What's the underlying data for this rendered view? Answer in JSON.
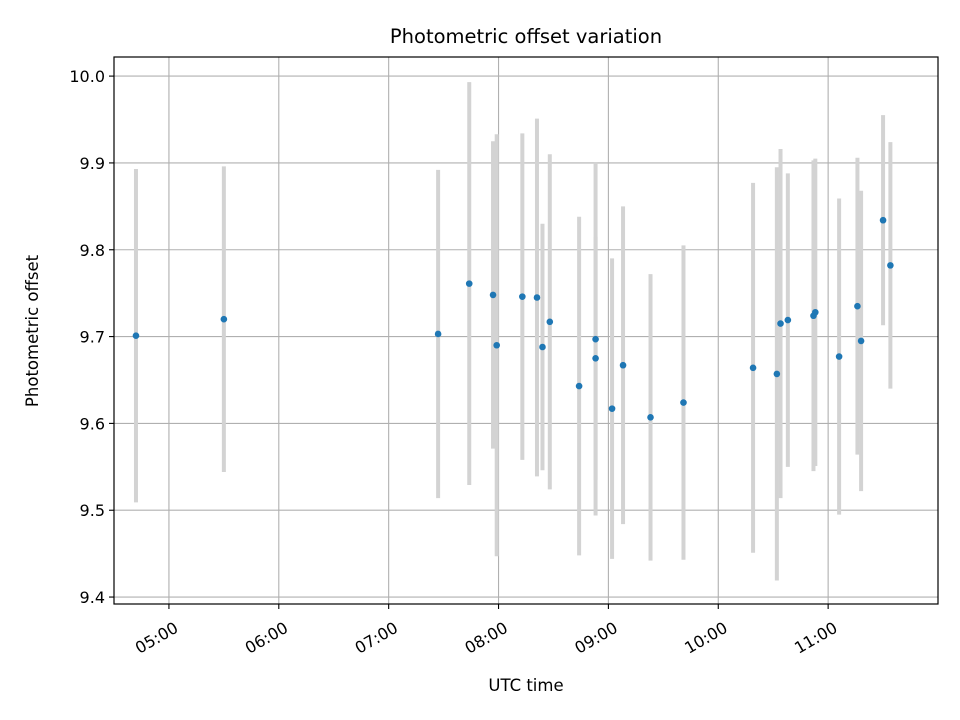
{
  "chart_data": {
    "type": "scatter",
    "title": "Photometric offset variation",
    "xlabel": "UTC time",
    "ylabel": "Photometric offset",
    "x_axis_kind": "time",
    "xlim": [
      "04:30",
      "12:00"
    ],
    "ylim": [
      9.392,
      10.022
    ],
    "x_ticks": [
      "05:00",
      "06:00",
      "07:00",
      "08:00",
      "09:00",
      "10:00",
      "11:00"
    ],
    "y_ticks": [
      "9.4",
      "9.5",
      "9.6",
      "9.7",
      "9.8",
      "9.9",
      "10.0"
    ],
    "grid": true,
    "marker_color": "#1f77b4",
    "errorbar_color": "#d3d3d3",
    "points": [
      {
        "t": "04:42",
        "y": 9.701,
        "err": 0.192
      },
      {
        "t": "05:30",
        "y": 9.72,
        "err": 0.176
      },
      {
        "t": "07:27",
        "y": 9.703,
        "err": 0.189
      },
      {
        "t": "07:44",
        "y": 9.761,
        "err": 0.232
      },
      {
        "t": "07:57",
        "y": 9.748,
        "err": 0.177
      },
      {
        "t": "07:59",
        "y": 9.69,
        "err": 0.243
      },
      {
        "t": "08:13",
        "y": 9.746,
        "err": 0.188
      },
      {
        "t": "08:21",
        "y": 9.745,
        "err": 0.206
      },
      {
        "t": "08:24",
        "y": 9.688,
        "err": 0.142
      },
      {
        "t": "08:28",
        "y": 9.717,
        "err": 0.193
      },
      {
        "t": "08:44",
        "y": 9.643,
        "err": 0.195
      },
      {
        "t": "08:53",
        "y": 9.697,
        "err": 0.203
      },
      {
        "t": "08:53",
        "y": 9.675,
        "err": 0.14
      },
      {
        "t": "09:02",
        "y": 9.617,
        "err": 0.173
      },
      {
        "t": "09:08",
        "y": 9.667,
        "err": 0.183
      },
      {
        "t": "09:23",
        "y": 9.607,
        "err": 0.165
      },
      {
        "t": "09:41",
        "y": 9.624,
        "err": 0.181
      },
      {
        "t": "10:19",
        "y": 9.664,
        "err": 0.213
      },
      {
        "t": "10:32",
        "y": 9.657,
        "err": 0.238
      },
      {
        "t": "10:34",
        "y": 9.715,
        "err": 0.201
      },
      {
        "t": "10:38",
        "y": 9.719,
        "err": 0.169
      },
      {
        "t": "10:52",
        "y": 9.724,
        "err": 0.179
      },
      {
        "t": "10:53",
        "y": 9.728,
        "err": 0.177
      },
      {
        "t": "11:06",
        "y": 9.677,
        "err": 0.182
      },
      {
        "t": "11:16",
        "y": 9.735,
        "err": 0.171
      },
      {
        "t": "11:18",
        "y": 9.695,
        "err": 0.173
      },
      {
        "t": "11:30",
        "y": 9.834,
        "err": 0.121
      },
      {
        "t": "11:34",
        "y": 9.782,
        "err": 0.142
      }
    ]
  }
}
